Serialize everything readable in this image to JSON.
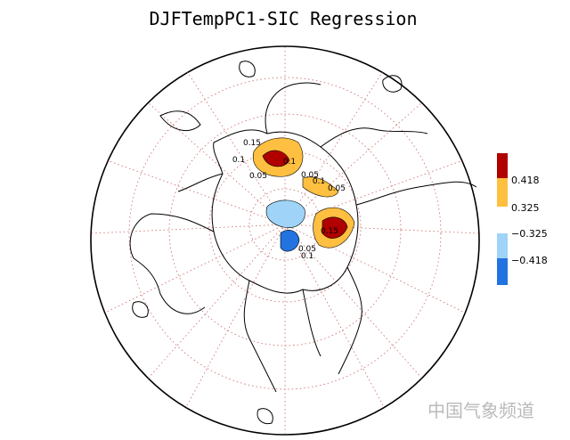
{
  "title": "DJFTempPC1-SIC Regression",
  "colorbar": {
    "labels": [
      "0.418",
      "0.325",
      "−0.325",
      "−0.418"
    ],
    "colors": [
      "#b00000",
      "#ffbf40",
      "#9fd3f7",
      "#2273e0"
    ]
  },
  "contour_labels": [
    "0.15",
    "0.1",
    "0.1",
    "0.05",
    "0.05",
    "0.05",
    "0.1",
    "0.15",
    "0.05",
    "0.1"
  ],
  "watermark": "中国气象频道"
}
